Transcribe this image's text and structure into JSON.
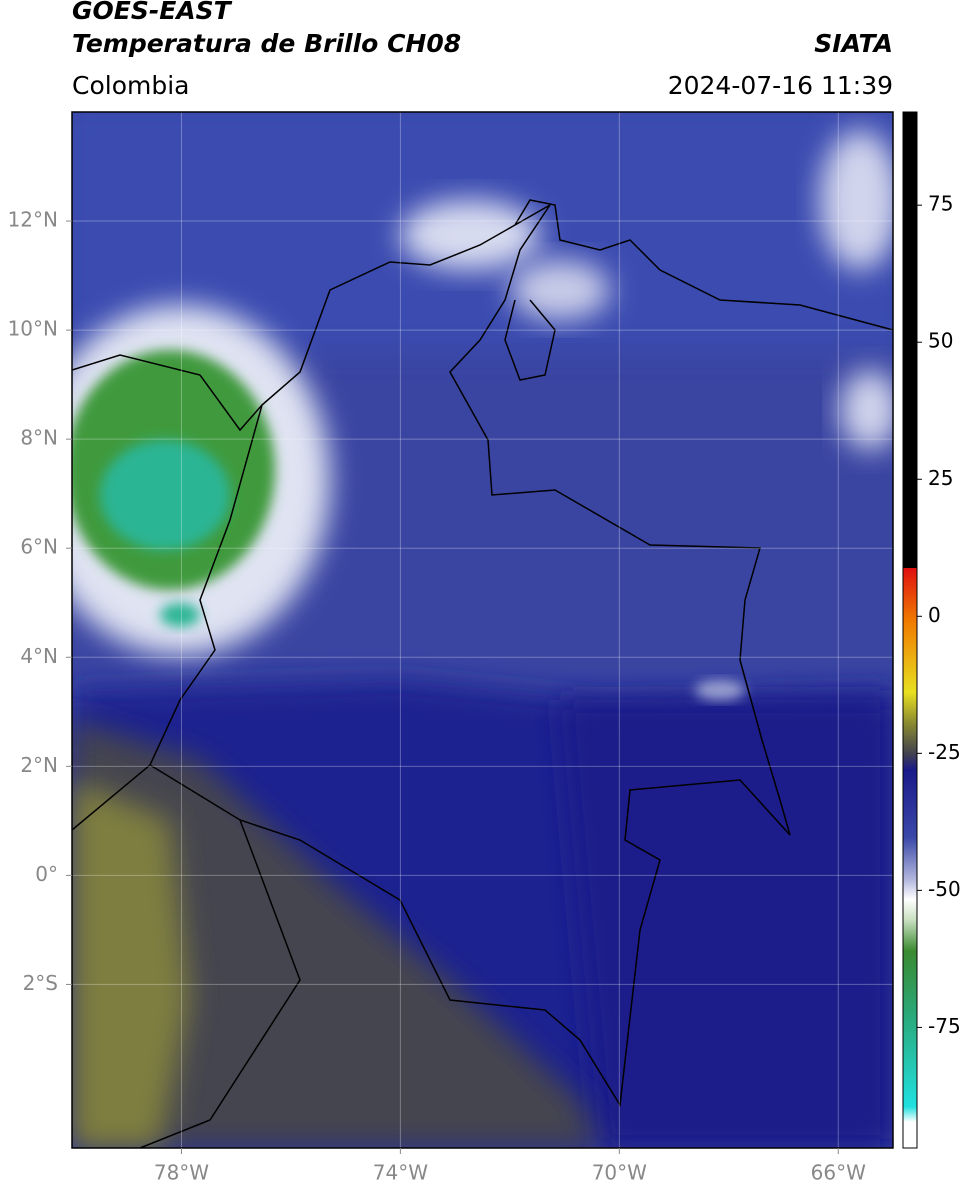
{
  "header": {
    "title": "GOES-EAST",
    "subtitle": "Temperatura de Brillo CH08",
    "source": "SIATA",
    "region": "Colombia",
    "timestamp": "2024-07-16 11:39"
  },
  "map": {
    "lonlim": [
      -80,
      -65
    ],
    "latlim": [
      -5,
      14
    ],
    "grid": true,
    "lonticks": [
      {
        "value": -78,
        "label": "78°W"
      },
      {
        "value": -74,
        "label": "74°W"
      },
      {
        "value": -70,
        "label": "70°W"
      },
      {
        "value": -66,
        "label": "66°W"
      }
    ],
    "latticks": [
      {
        "value": 12,
        "label": "12°N"
      },
      {
        "value": 10,
        "label": "10°N"
      },
      {
        "value": 8,
        "label": "8°N"
      },
      {
        "value": 6,
        "label": "6°N"
      },
      {
        "value": 4,
        "label": "4°N"
      },
      {
        "value": 2,
        "label": "2°N"
      },
      {
        "value": 0,
        "label": "0°"
      },
      {
        "value": -2,
        "label": "2°S"
      }
    ]
  },
  "colorbar": {
    "lim": [
      -97,
      92
    ],
    "ticks": [
      75,
      50,
      25,
      0,
      -25,
      -50,
      -75
    ]
  }
}
